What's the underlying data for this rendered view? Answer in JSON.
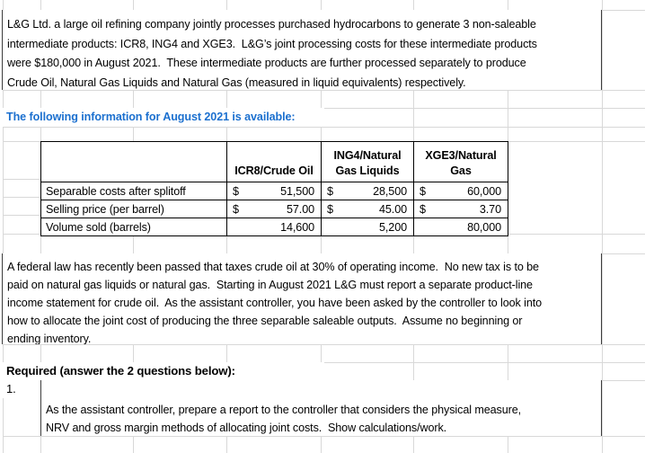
{
  "colors": {
    "info_text_blue": "#1c70cf",
    "text": "#000000",
    "gridline": "#d8d8d8",
    "table_border": "#000000"
  },
  "intro_paragraph": {
    "lines": [
      "L&G Ltd. a large oil refining company jointly processes purchased hydrocarbons to generate 3 non-saleable",
      "intermediate products: ICR8, ING4 and XGE3.  L&G’s joint processing costs for these intermediate products",
      "were $180,000 in August 2021.  These intermediate products are further processed separately to produce",
      "Crude Oil, Natural Gas Liquids and Natural Gas (measured in liquid equivalents) respectively."
    ]
  },
  "info_line": "The following information for August 2021 is available:",
  "table": {
    "column_headers": [
      "ICR8/Crude Oil",
      "ING4/Natural\nGas Liquids",
      "XGE3/Natural\nGas"
    ],
    "rows": [
      {
        "label": "Separable costs after splitoff",
        "cells": [
          {
            "currency": "$",
            "amount": "51,500"
          },
          {
            "currency": "$",
            "amount": "28,500"
          },
          {
            "currency": "$",
            "amount": "60,000"
          }
        ]
      },
      {
        "label": "Selling price (per barrel)",
        "cells": [
          {
            "currency": "$",
            "amount": "57.00"
          },
          {
            "currency": "$",
            "amount": "45.00"
          },
          {
            "currency": "$",
            "amount": "3.70"
          }
        ]
      },
      {
        "label": "Volume sold (barrels)",
        "cells": [
          {
            "currency": "",
            "amount": "14,600"
          },
          {
            "currency": "",
            "amount": "5,200"
          },
          {
            "currency": "",
            "amount": "80,000"
          }
        ]
      }
    ]
  },
  "law_paragraph": {
    "lines": [
      "A federal law has recently been passed that taxes crude oil at 30% of operating income.  No new tax is to be",
      "paid on natural gas liquids or natural gas.  Starting in August 2021 L&G must report a separate product-line",
      "income statement for crude oil.  As the assistant controller, you have been asked by the controller to look into",
      "how to allocate the joint cost of producing the three separable saleable outputs.  Assume no beginning or",
      "ending inventory."
    ]
  },
  "required": {
    "heading": "Required (answer the 2 questions below):",
    "item_number": "1.",
    "item_lines": [
      "As the assistant controller, prepare a report to the controller that considers the physical measure,",
      "NRV and gross margin methods of allocating joint costs.  Show calculations/work."
    ]
  }
}
